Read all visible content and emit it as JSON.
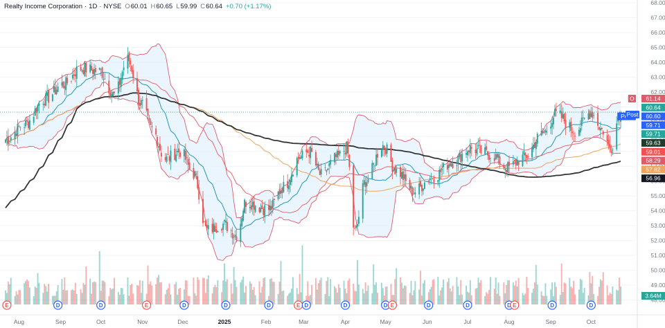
{
  "header": {
    "name": "Realty Income Corporation",
    "interval": "1D",
    "exchange": "NYSE",
    "open_label": "O",
    "open": "60.01",
    "high_label": "H",
    "high": "60.65",
    "low_label": "L",
    "low": "59.99",
    "close_label": "C",
    "close": "60.64",
    "change": "+0.70 (+1.17%)"
  },
  "post_label": "Post",
  "colors": {
    "up": "#26a69a",
    "down": "#ef5350",
    "bb_band": "#e05a6a",
    "bb_basis": "#2196b8",
    "bb_fill": "#e3f2fd",
    "sma_red": "#e36a72",
    "sma_orange": "#f0a45e",
    "sma_black": "#333333",
    "event_dividend": "#2962ff",
    "event_earnings": "#ef5350"
  },
  "chart_data": {
    "type": "candlestick",
    "ylim": [
      47,
      68
    ],
    "y_ticks": [
      "48.00",
      "49.00",
      "50.00",
      "51.00",
      "52.00",
      "53.00",
      "54.00",
      "55.00",
      "56.00",
      "57.00",
      "58.00",
      "59.00",
      "60.00",
      "61.00",
      "62.00",
      "63.00",
      "64.00",
      "65.00",
      "66.00",
      "67.00",
      "68.00"
    ],
    "x_tick_labels": [
      "Aug",
      "Sep",
      "Oct",
      "Nov",
      "Dec",
      "2025",
      "Feb",
      "Mar",
      "Apr",
      "May",
      "Jun",
      "Jul",
      "Aug",
      "Sep",
      "Oct"
    ],
    "x_tick_dates": [
      "2024-08-01",
      "2024-09-01",
      "2024-10-01",
      "2024-11-01",
      "2024-12-01",
      "2025-01-01",
      "2025-02-01",
      "2025-03-01",
      "2025-04-01",
      "2025-05-01",
      "2025-06-01",
      "2025-07-01",
      "2025-08-01",
      "2025-09-01",
      "2025-10-01"
    ],
    "x_range": [
      "2024-07-22",
      "2025-10-23"
    ],
    "close_keypoints": [
      [
        "2024-07-22",
        58.8
      ],
      [
        "2024-08-05",
        59.8
      ],
      [
        "2024-08-20",
        61.5
      ],
      [
        "2024-09-03",
        62.5
      ],
      [
        "2024-09-16",
        63.6
      ],
      [
        "2024-09-30",
        63.4
      ],
      [
        "2024-10-11",
        61.8
      ],
      [
        "2024-10-21",
        64.2
      ],
      [
        "2024-10-31",
        61.2
      ],
      [
        "2024-11-08",
        59.5
      ],
      [
        "2024-11-18",
        57.5
      ],
      [
        "2024-11-29",
        58.0
      ],
      [
        "2024-12-09",
        56.5
      ],
      [
        "2024-12-19",
        52.7
      ],
      [
        "2024-12-31",
        53.1
      ],
      [
        "2025-01-10",
        52.4
      ],
      [
        "2025-01-17",
        54.6
      ],
      [
        "2025-02-03",
        54.1
      ],
      [
        "2025-02-14",
        55.6
      ],
      [
        "2025-02-26",
        57.6
      ],
      [
        "2025-03-05",
        58.0
      ],
      [
        "2025-03-14",
        56.4
      ],
      [
        "2025-03-26",
        57.6
      ],
      [
        "2025-04-02",
        58.2
      ],
      [
        "2025-04-08",
        52.6
      ],
      [
        "2025-04-16",
        56.0
      ],
      [
        "2025-04-29",
        58.4
      ],
      [
        "2025-05-09",
        56.7
      ],
      [
        "2025-05-22",
        55.3
      ],
      [
        "2025-06-05",
        56.3
      ],
      [
        "2025-06-20",
        57.3
      ],
      [
        "2025-07-03",
        58.2
      ],
      [
        "2025-07-18",
        57.8
      ],
      [
        "2025-07-31",
        56.9
      ],
      [
        "2025-08-12",
        57.6
      ],
      [
        "2025-08-26",
        59.2
      ],
      [
        "2025-09-05",
        60.5
      ],
      [
        "2025-09-19",
        59.4
      ],
      [
        "2025-10-01",
        60.6
      ],
      [
        "2025-10-10",
        59.4
      ],
      [
        "2025-10-15",
        58.2
      ],
      [
        "2025-10-23",
        60.64
      ]
    ],
    "events": [
      {
        "date": "2024-07-23",
        "type": "E"
      },
      {
        "date": "2024-08-30",
        "type": "D"
      },
      {
        "date": "2024-10-01",
        "type": "D"
      },
      {
        "date": "2024-11-04",
        "type": "E"
      },
      {
        "date": "2024-12-02",
        "type": "D"
      },
      {
        "date": "2025-01-02",
        "type": "D"
      },
      {
        "date": "2025-02-03",
        "type": "D"
      },
      {
        "date": "2025-02-25",
        "type": "E"
      },
      {
        "date": "2025-03-03",
        "type": "D"
      },
      {
        "date": "2025-04-01",
        "type": "D"
      },
      {
        "date": "2025-05-01",
        "type": "D"
      },
      {
        "date": "2025-05-06",
        "type": "E"
      },
      {
        "date": "2025-06-02",
        "type": "D"
      },
      {
        "date": "2025-07-01",
        "type": "D"
      },
      {
        "date": "2025-08-01",
        "type": "D"
      },
      {
        "date": "2025-08-05",
        "type": "E"
      },
      {
        "date": "2025-09-02",
        "type": "D"
      },
      {
        "date": "2025-10-01",
        "type": "D"
      }
    ],
    "price_badges": [
      {
        "label": "O",
        "value": "61.14",
        "color": "#e05a6a"
      },
      {
        "label": "",
        "value": "60.64",
        "color": "#26a69a"
      },
      {
        "label": "Post",
        "value": "60.60",
        "color": "#2962ff"
      },
      {
        "label": "",
        "value": "59.71",
        "color": "#2962ff"
      },
      {
        "label": "",
        "value": "59.71",
        "color": "#26a69a"
      },
      {
        "label": "",
        "value": "59.63",
        "color": "#1e3d2f"
      },
      {
        "label": "",
        "value": "59.01",
        "color": "#ef5350"
      },
      {
        "label": "",
        "value": "58.29",
        "color": "#e05a6a"
      },
      {
        "label": "",
        "value": "57.82",
        "color": "#f0a45e"
      },
      {
        "label": "",
        "value": "56.96",
        "color": "#131722"
      }
    ],
    "volume_badge": "3.64M",
    "price_reference_line": 60.64
  }
}
